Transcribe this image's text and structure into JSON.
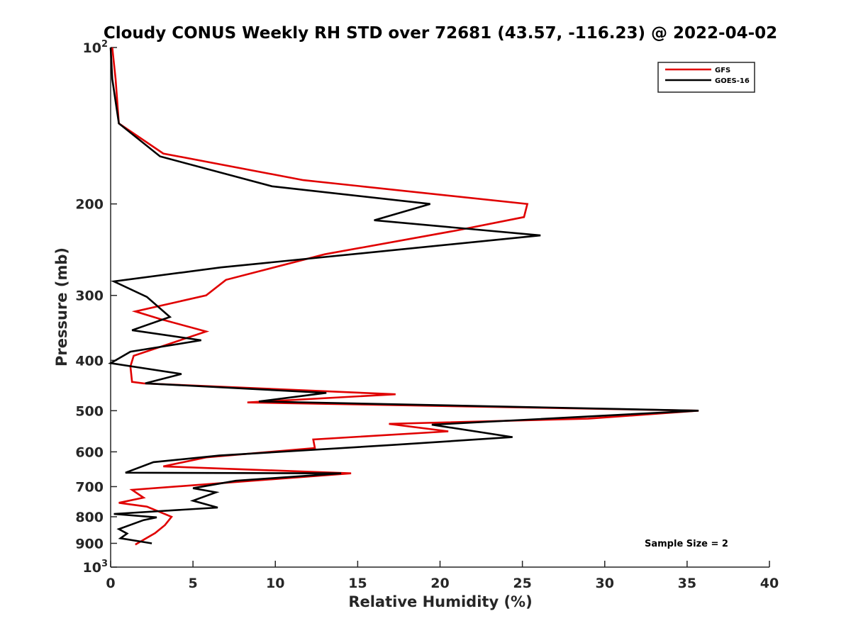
{
  "chart_data": {
    "type": "line",
    "title": "Cloudy CONUS Weekly RH STD over 72681 (43.57, -116.23) @ 2022-04-02",
    "xlabel": "Relative Humidity (%)",
    "ylabel": "Pressure (mb)",
    "xlim": [
      0,
      40
    ],
    "ylim": [
      100,
      1000
    ],
    "y_scale": "log",
    "y_reversed": true,
    "x_ticks": [
      "0",
      "5",
      "10",
      "15",
      "20",
      "25",
      "30",
      "35",
      "40"
    ],
    "y_ticks": [
      {
        "value": 100,
        "label": "10",
        "sup": "2"
      },
      {
        "value": 200,
        "label": "200"
      },
      {
        "value": 300,
        "label": "300"
      },
      {
        "value": 400,
        "label": "400"
      },
      {
        "value": 500,
        "label": "500"
      },
      {
        "value": 600,
        "label": "600"
      },
      {
        "value": 700,
        "label": "700"
      },
      {
        "value": 800,
        "label": "800"
      },
      {
        "value": 900,
        "label": "900"
      },
      {
        "value": 1000,
        "label": "10",
        "sup": "3"
      }
    ],
    "legend_position": "top-right",
    "annotation": "Sample Size = 2",
    "series": [
      {
        "name": "GFS",
        "color": "#e00000",
        "points": [
          [
            0.1,
            100
          ],
          [
            0.3,
            115
          ],
          [
            0.5,
            140
          ],
          [
            3.2,
            160
          ],
          [
            11.7,
            180
          ],
          [
            25.3,
            200
          ],
          [
            25.1,
            212
          ],
          [
            21.0,
            225
          ],
          [
            13.0,
            250
          ],
          [
            7.0,
            280
          ],
          [
            5.8,
            300
          ],
          [
            1.5,
            322
          ],
          [
            3.0,
            333
          ],
          [
            5.8,
            352
          ],
          [
            1.4,
            392
          ],
          [
            1.2,
            411
          ],
          [
            1.3,
            440
          ],
          [
            2.0,
            443
          ],
          [
            17.3,
            465
          ],
          [
            8.3,
            482
          ],
          [
            35.7,
            500
          ],
          [
            29.0,
            518
          ],
          [
            16.9,
            530
          ],
          [
            20.5,
            548
          ],
          [
            12.3,
            568
          ],
          [
            12.4,
            590
          ],
          [
            5.8,
            615
          ],
          [
            3.2,
            640
          ],
          [
            14.6,
            660
          ],
          [
            1.3,
            710
          ],
          [
            2.0,
            735
          ],
          [
            0.5,
            752
          ],
          [
            2.2,
            765
          ],
          [
            3.7,
            800
          ],
          [
            3.3,
            830
          ],
          [
            2.7,
            860
          ],
          [
            1.5,
            905
          ]
        ]
      },
      {
        "name": "GOES-16",
        "color": "#000000",
        "points": [
          [
            0.0,
            100
          ],
          [
            0.1,
            115
          ],
          [
            0.5,
            140
          ],
          [
            3.0,
            162
          ],
          [
            9.8,
            185
          ],
          [
            19.4,
            200
          ],
          [
            16.0,
            215
          ],
          [
            26.1,
            230
          ],
          [
            6.7,
            265
          ],
          [
            0.2,
            282
          ],
          [
            2.2,
            302
          ],
          [
            3.6,
            330
          ],
          [
            1.3,
            350
          ],
          [
            5.5,
            366
          ],
          [
            1.2,
            385
          ],
          [
            0.0,
            405
          ],
          [
            4.3,
            425
          ],
          [
            2.1,
            443
          ],
          [
            13.1,
            462
          ],
          [
            9.0,
            480
          ],
          [
            35.7,
            500
          ],
          [
            19.5,
            532
          ],
          [
            24.4,
            562
          ],
          [
            17.1,
            582
          ],
          [
            6.6,
            610
          ],
          [
            2.6,
            628
          ],
          [
            0.9,
            658
          ],
          [
            14.0,
            660
          ],
          [
            7.6,
            682
          ],
          [
            5.0,
            705
          ],
          [
            6.4,
            718
          ],
          [
            5.0,
            745
          ],
          [
            6.5,
            768
          ],
          [
            0.2,
            790
          ],
          [
            2.8,
            802
          ],
          [
            2.0,
            812
          ],
          [
            0.5,
            845
          ],
          [
            1.0,
            862
          ],
          [
            0.6,
            880
          ],
          [
            2.5,
            900
          ]
        ]
      }
    ]
  }
}
